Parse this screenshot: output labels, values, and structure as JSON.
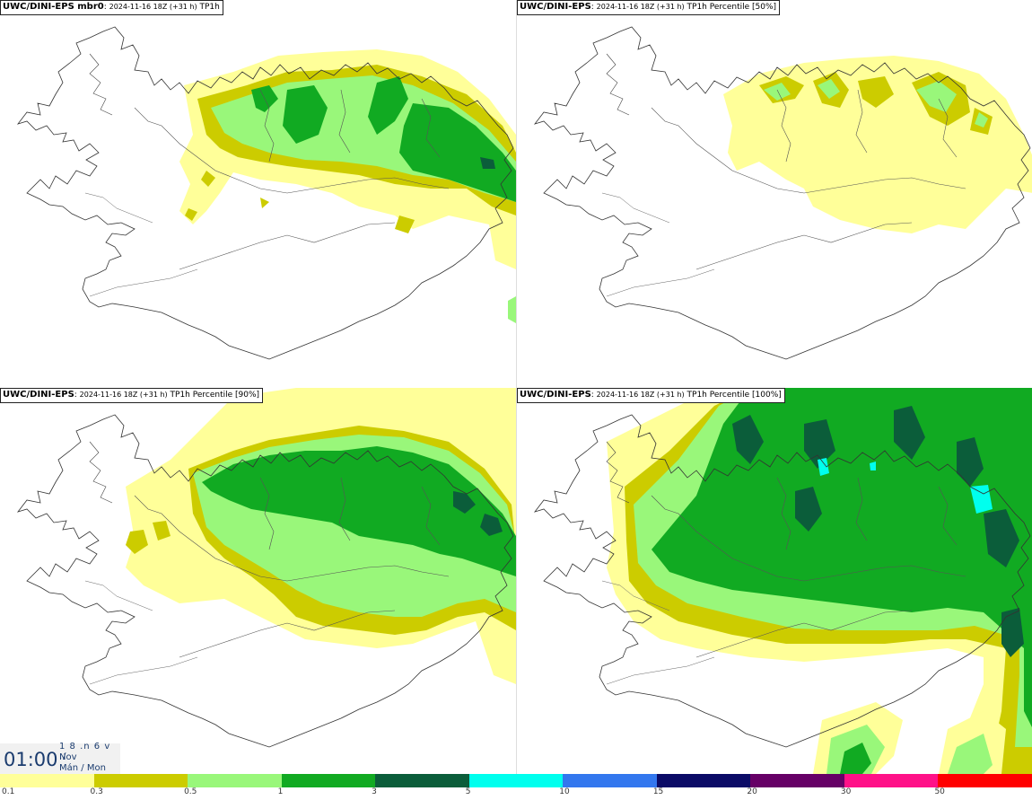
{
  "panels": [
    {
      "model": "UWC/DINI-EPS mbr0",
      "date": "2024-11-16 18Z (+31 h)",
      "field": "TP1h"
    },
    {
      "model": "UWC/DINI-EPS",
      "date": "2024-11-16 18Z (+31 h)",
      "field": "TP1h Percentile [50%]"
    },
    {
      "model": "UWC/DINI-EPS",
      "date": "2024-11-16 18Z (+31 h)",
      "field": "TP1h Percentile [90%]"
    },
    {
      "model": "UWC/DINI-EPS",
      "date": "2024-11-16 18Z (+31 h)",
      "field": "TP1h Percentile [100%]"
    }
  ],
  "clock": {
    "time": "01:00",
    "day_line": "1 8 .n 6 v ./",
    "month": "Nov",
    "weekday": "Mán / Mon"
  },
  "scale": {
    "labels": [
      "0.1",
      "0.3",
      "0.5",
      "1",
      "3",
      "5",
      "10",
      "15",
      "20",
      "30",
      "50"
    ],
    "colors": [
      "#ffff99",
      "#cccc00",
      "#99f77a",
      "#11aa22",
      "#0b5d3a",
      "#00ffee",
      "#3377ee",
      "#0b0b66",
      "#660066",
      "#ff1188",
      "#ff0000"
    ]
  },
  "colors": {
    "light_yellow": "#ffff99",
    "olive": "#cccc00",
    "light_green": "#99f77a",
    "green": "#11aa22",
    "dark_green": "#0b5d3a",
    "cyan": "#00ffee"
  }
}
